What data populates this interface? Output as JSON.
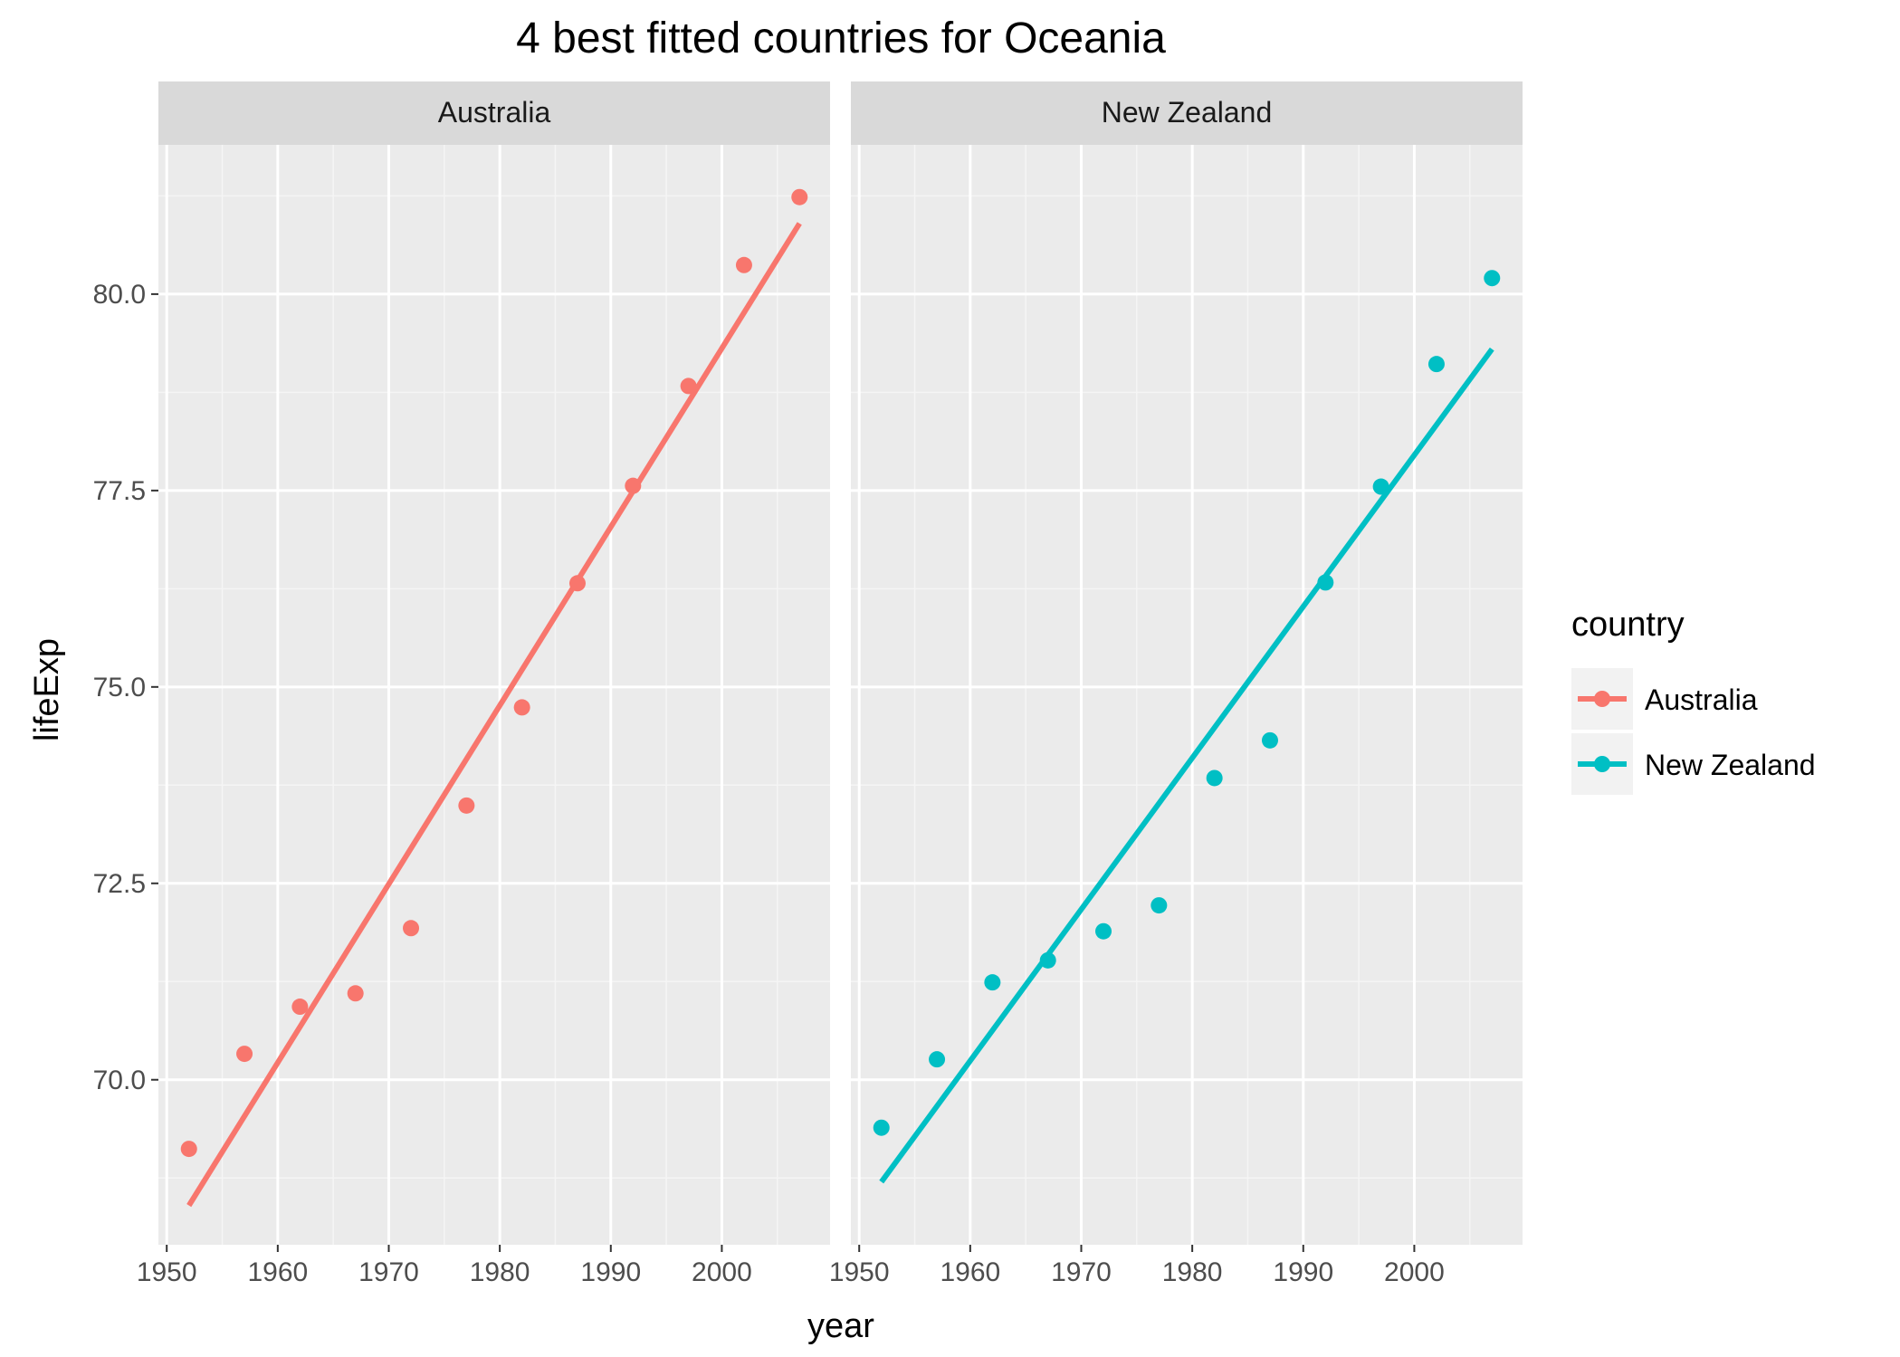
{
  "chart_data": {
    "type": "scatter",
    "title": "4 best fitted countries for Oceania",
    "xlabel": "year",
    "ylabel": "lifeExp",
    "xlim": [
      1949.25,
      2009.75
    ],
    "ylim": [
      67.9,
      81.9
    ],
    "x_ticks": [
      1950,
      1960,
      1970,
      1980,
      1990,
      2000
    ],
    "y_ticks": [
      70.0,
      72.5,
      75.0,
      77.5,
      80.0
    ],
    "y_tick_labels": [
      "70.0",
      "72.5",
      "75.0",
      "77.5",
      "80.0"
    ],
    "x_tick_labels": [
      "1950",
      "1960",
      "1970",
      "1980",
      "1990",
      "2000"
    ],
    "grid": true,
    "legend_position": "right",
    "legend_title": "country",
    "facet_variable": "country",
    "series": [
      {
        "name": "Australia",
        "color": "#F8766D",
        "x": [
          1952,
          1957,
          1962,
          1967,
          1972,
          1977,
          1982,
          1987,
          1992,
          1997,
          2002,
          2007
        ],
        "values": [
          69.12,
          70.33,
          70.93,
          71.1,
          71.93,
          73.49,
          74.74,
          76.32,
          77.56,
          78.83,
          80.37,
          81.235
        ],
        "fit": {
          "x": [
            1952,
            2007
          ],
          "y": [
            68.4,
            80.9
          ]
        }
      },
      {
        "name": "New Zealand",
        "color": "#00BFC4",
        "x": [
          1952,
          1957,
          1962,
          1967,
          1972,
          1977,
          1982,
          1987,
          1992,
          1997,
          2002,
          2007
        ],
        "values": [
          69.39,
          70.26,
          71.24,
          71.52,
          71.89,
          72.22,
          73.84,
          74.32,
          76.33,
          77.55,
          79.11,
          80.204
        ],
        "fit": {
          "x": [
            1952,
            2007
          ],
          "y": [
            68.7,
            79.3
          ]
        }
      }
    ]
  }
}
